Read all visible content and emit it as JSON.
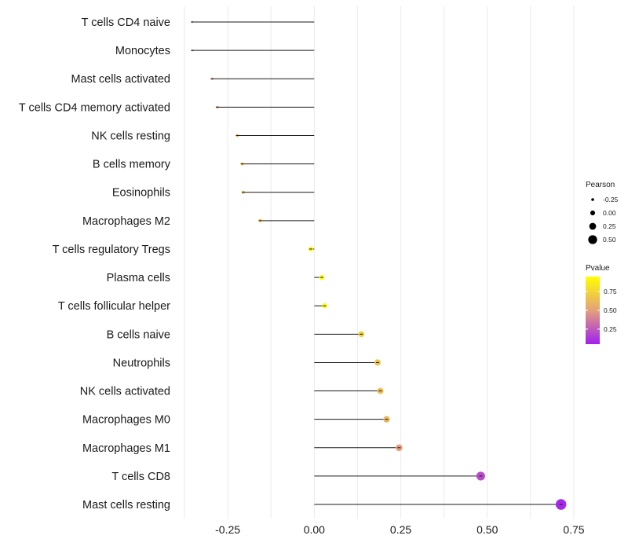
{
  "chart_data": {
    "type": "lollipop",
    "title": "",
    "xlabel": "",
    "ylabel": "",
    "xlim": [
      -0.375,
      0.775
    ],
    "xticks": [
      -0.25,
      0.0,
      0.25,
      0.5,
      0.75
    ],
    "xtick_labels": [
      "-0.25",
      "0.00",
      "0.25",
      "0.50",
      "0.75"
    ],
    "grid": true,
    "baseline": 0,
    "categories": [
      "T cells CD4 naive",
      "Monocytes",
      "Mast cells activated",
      "T cells CD4 memory activated",
      "NK cells resting",
      "B cells memory",
      "Eosinophils",
      "Macrophages M2",
      "T cells regulatory  Tregs",
      "Plasma cells",
      "T cells follicular helper",
      "B cells naive",
      "Neutrophils",
      "NK cells activated",
      "Macrophages M0",
      "Macrophages M1",
      "T cells CD8",
      "Mast cells resting"
    ],
    "values": [
      -0.352,
      -0.352,
      -0.295,
      -0.28,
      -0.222,
      -0.208,
      -0.205,
      -0.156,
      -0.01,
      0.022,
      0.03,
      0.136,
      0.183,
      0.191,
      0.209,
      0.245,
      0.481,
      0.713
    ],
    "pvalues": [
      0.4,
      0.4,
      0.48,
      0.52,
      0.62,
      0.63,
      0.63,
      0.7,
      0.95,
      0.95,
      0.94,
      0.73,
      0.66,
      0.64,
      0.6,
      0.5,
      0.2,
      0.08
    ],
    "legend": {
      "size_title": "Pearson",
      "size_values": [
        -0.25,
        0.0,
        0.25,
        0.5
      ],
      "size_labels": [
        "-0.25",
        "0.00",
        "0.25",
        "0.50"
      ],
      "color_title": "Pvalue",
      "color_ticks": [
        0.75,
        0.5,
        0.25
      ],
      "color_labels": [
        "0.75",
        "0.50",
        "0.25"
      ],
      "color_range": [
        0.05,
        0.95
      ],
      "color_low": "#a020f0",
      "color_mid": "#e4a07a",
      "color_high": "#ffff00"
    }
  }
}
